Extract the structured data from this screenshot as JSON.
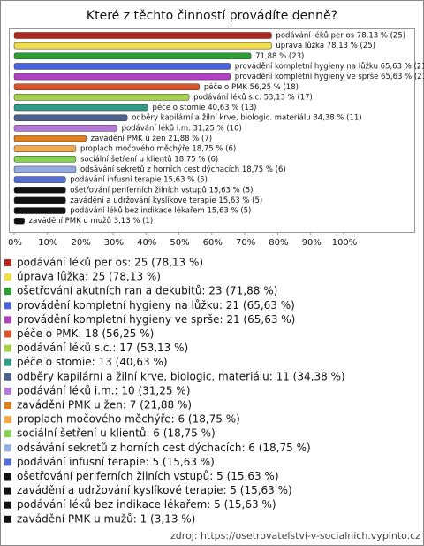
{
  "chart_data": {
    "type": "bar",
    "orientation": "horizontal",
    "title": "Které z těchto činností provádíte denně?",
    "values": [
      78.13,
      78.13,
      71.88,
      65.63,
      65.63,
      56.25,
      53.13,
      40.63,
      34.38,
      31.25,
      21.88,
      18.75,
      18.75,
      18.75,
      15.63,
      15.63,
      15.63,
      15.63,
      3.13
    ],
    "value_labels": [
      "podávání léků per os 78,13 % (25)",
      "úprava lůžka 78,13 % (25)",
      "71,88 % (23)",
      "provádění kompletní hygieny na lůžku 65,63 % (21)",
      "provádění kompletní hygieny ve sprše 65,63 % (21)",
      "péče o PMK 56,25 % (18)",
      "podávání léků s.c. 53,13 % (17)",
      "péče o stomie 40,63 % (13)",
      "odběry kapilární a žilní krve, biologic. materiálu 34,38 % (11)",
      "podávání léků i.m. 31,25 % (10)",
      "zavádění PMK u žen 21,88 % (7)",
      "proplach močového měchýře 18,75 % (6)",
      "sociální šetření u klientů 18,75 % (6)",
      "odsávání sekretů z horních cest dýchacích 18,75 % (6)",
      "podávání infusní terapie 15,63 % (5)",
      "ošetřování periferních žilních vstupů 15,63 % (5)",
      "zavádění a udržování kyslíkové terapie 15,63 % (5)",
      "podávání léků bez indikace lékařem 15,63 % (5)",
      "zavádění PMK u mužů 3,13 % (1)"
    ],
    "legend_labels": [
      "podávání léků per os: 25 (78,13 %)",
      "úprava lůžka: 25 (78,13 %)",
      "ošetřování akutních ran a dekubitů: 23 (71,88 %)",
      "provádění kompletní hygieny na lůžku: 21 (65,63 %)",
      "provádění kompletní hygieny ve sprše: 21 (65,63 %)",
      "péče o PMK: 18 (56,25 %)",
      "podávání léků s.c.: 17 (53,13 %)",
      "péče o stomie: 13 (40,63 %)",
      "odběry kapilární a žilní krve, biologic. materiálu: 11 (34,38 %)",
      "podávání léků i.m.: 10 (31,25 %)",
      "zavádění PMK u žen: 7 (21,88 %)",
      "proplach močového měchýře: 6 (18,75 %)",
      "sociální šetření u klientů: 6 (18,75 %)",
      "odsávání sekretů z horních cest dýchacích: 6 (18,75 %)",
      "podávání infusní terapie: 5 (15,63 %)",
      "ošetřování periferních žilních vstupů: 5 (15,63 %)",
      "zavádění a udržování kyslíkové terapie: 5 (15,63 %)",
      "podávání léků bez indikace lékařem: 5 (15,63 %)",
      "zavádění PMK u mužů: 1 (3,13 %)"
    ],
    "colors": [
      "#b3261e",
      "#f3dc4a",
      "#2e9e34",
      "#4a63d9",
      "#b23fc4",
      "#e0542a",
      "#a6d24a",
      "#2f9d86",
      "#4f628e",
      "#b27ad6",
      "#e0801e",
      "#f2a94a",
      "#84d454",
      "#94abe3",
      "#5570d4",
      "#111111",
      "#111111",
      "#111111",
      "#111111"
    ],
    "xlim": [
      0,
      100
    ],
    "xticks": [
      {
        "value": 0,
        "label": "0%"
      },
      {
        "value": 10,
        "label": "10%"
      },
      {
        "value": 20,
        "label": "20%"
      },
      {
        "value": 30,
        "label": "30%"
      },
      {
        "value": 40,
        "label": "40%"
      },
      {
        "value": 50,
        "label": "50%"
      },
      {
        "value": 60,
        "label": "60%"
      },
      {
        "value": 70,
        "label": "70%"
      },
      {
        "value": 80,
        "label": "80%"
      },
      {
        "value": 90,
        "label": "90%"
      },
      {
        "value": 100,
        "label": "100%"
      }
    ],
    "source": "zdroj: https://osetrovatelstvi-v-socialnich.vyplnto.cz"
  }
}
